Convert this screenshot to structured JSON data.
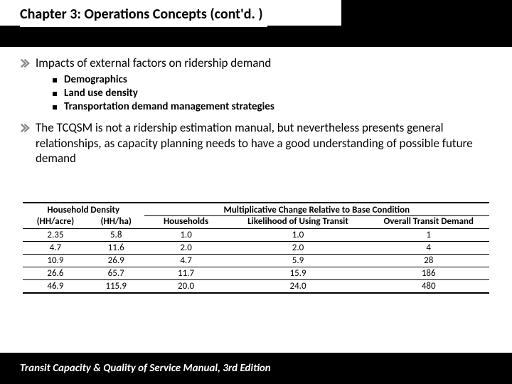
{
  "header": {
    "title": "Chapter 3: Operations Concepts (cont'd. )"
  },
  "bullets": [
    {
      "text": "Impacts of external factors on ridership demand",
      "subs": [
        "Demographics",
        "Land use density",
        "Transportation demand management strategies"
      ]
    },
    {
      "text": "The TCQSM is not a ridership estimation manual, but nevertheless presents general relationships, as capacity planning needs to have a good understanding of possible future demand",
      "subs": []
    }
  ],
  "table": {
    "group_headers": {
      "left": "Household Density",
      "right": "Multiplicative Change Relative to Base Condition"
    },
    "columns": [
      "(HH/acre)",
      "(HH/ha)",
      "Households",
      "Likelihood of Using Transit",
      "Overall Transit Demand"
    ],
    "rows": [
      [
        "2.35",
        "5.8",
        "1.0",
        "1.0",
        "1"
      ],
      [
        "4.7",
        "11.6",
        "2.0",
        "2.0",
        "4"
      ],
      [
        "10.9",
        "26.9",
        "4.7",
        "5.9",
        "28"
      ],
      [
        "26.6",
        "65.7",
        "11.7",
        "15.9",
        "186"
      ],
      [
        "46.9",
        "115.9",
        "20.0",
        "24.0",
        "480"
      ]
    ],
    "col_widths_pct": [
      14,
      12,
      18,
      30,
      26
    ]
  },
  "footer": {
    "text": "Transit Capacity & Quality of Service Manual, 3rd Edition"
  },
  "colors": {
    "band": "#000000",
    "text": "#000000",
    "footer_text": "#ffffff",
    "chevron": "#8a8a8a"
  }
}
